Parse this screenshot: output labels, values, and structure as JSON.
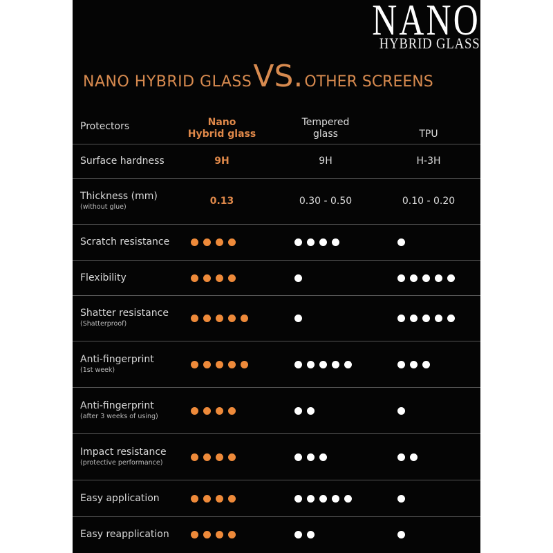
{
  "logo": {
    "line1": "NANO",
    "line2": "HYBRID GLASS"
  },
  "headline": {
    "left": "NANO HYBRID GLASS",
    "vs": "VS.",
    "right": "OTHER SCREENS"
  },
  "colors": {
    "accent": "#e0894a",
    "background": "#050505",
    "dot_other": "#ffffff"
  },
  "header": {
    "label": "Protectors",
    "col1": [
      "Nano",
      "Hybrid glass"
    ],
    "col2": [
      "Tempered",
      "glass"
    ],
    "col3": "TPU"
  },
  "rows": [
    {
      "label": "Surface hardness",
      "sub": "",
      "type": "text",
      "values": [
        "9H",
        "9H",
        "H-3H"
      ]
    },
    {
      "label": "Thickness (mm)",
      "sub": "(without glue)",
      "type": "text",
      "values": [
        "0.13",
        "0.30 - 0.50",
        "0.10 - 0.20"
      ]
    },
    {
      "label": "Scratch resistance",
      "sub": "",
      "type": "dots",
      "values": [
        4,
        4,
        1
      ]
    },
    {
      "label": "Flexibility",
      "sub": "",
      "type": "dots",
      "values": [
        4,
        1,
        5
      ]
    },
    {
      "label": "Shatter resistance",
      "sub": "(Shatterproof)",
      "type": "dots",
      "values": [
        5,
        1,
        5
      ]
    },
    {
      "label": "Anti-fingerprint",
      "sub": "(1st week)",
      "type": "dots",
      "values": [
        5,
        5,
        3
      ]
    },
    {
      "label": "Anti-fingerprint",
      "sub": "(after 3 weeks of using)",
      "type": "dots",
      "values": [
        4,
        2,
        1
      ]
    },
    {
      "label": "Impact resistance",
      "sub": "(protective performance)",
      "type": "dots",
      "values": [
        4,
        3,
        2
      ]
    },
    {
      "label": "Easy application",
      "sub": "",
      "type": "dots",
      "values": [
        4,
        5,
        1
      ]
    },
    {
      "label": "Easy reapplication",
      "sub": "",
      "type": "dots",
      "values": [
        4,
        2,
        1
      ]
    }
  ]
}
